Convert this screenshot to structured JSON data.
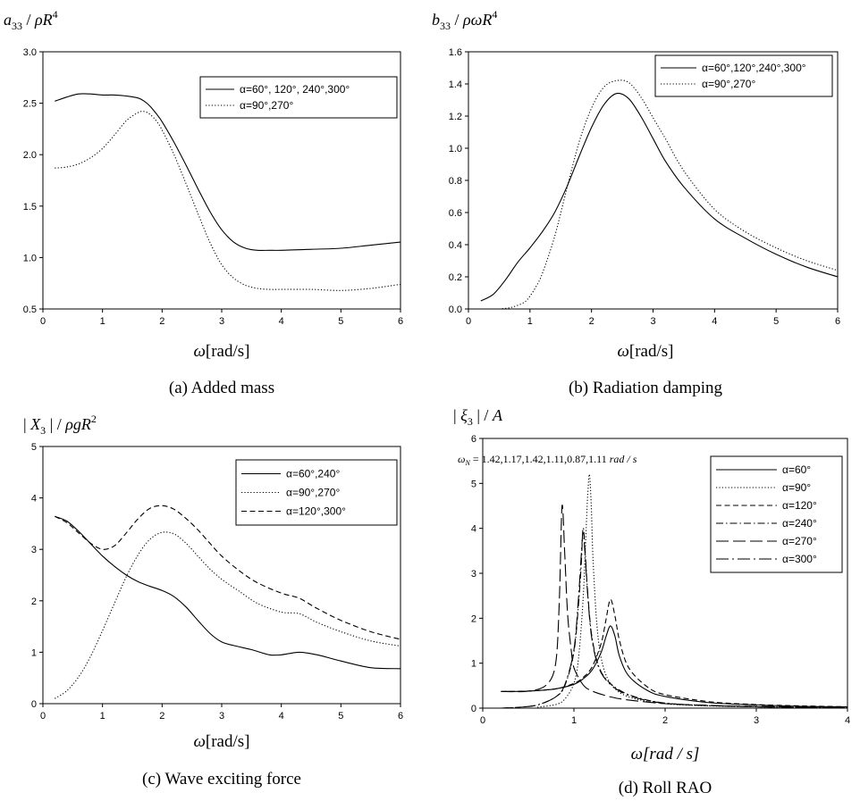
{
  "chart_data": [
    {
      "type": "line",
      "ylabel": "a33 / ρR4",
      "xlabel": "ω[rad/s]",
      "caption": "(a) Added mass",
      "xlim": [
        0,
        6
      ],
      "ylim": [
        0.5,
        3.0
      ],
      "xticks": [
        0,
        1,
        2,
        3,
        4,
        5,
        6
      ],
      "yticks": [
        0.5,
        1.0,
        1.5,
        2.0,
        2.5,
        3.0
      ],
      "ytick_decimals": 1,
      "legend": "top-right",
      "series": [
        {
          "name": "α=60°, 120°, 240°,300°",
          "style": "solid",
          "x": [
            0.2,
            0.4,
            0.6,
            0.8,
            1.0,
            1.2,
            1.4,
            1.6,
            1.7,
            1.8,
            1.9,
            2.0,
            2.2,
            2.4,
            2.6,
            2.8,
            3.0,
            3.2,
            3.4,
            3.6,
            3.8,
            4.0,
            4.5,
            5.0,
            5.5,
            6.0
          ],
          "y": [
            2.52,
            2.56,
            2.59,
            2.59,
            2.58,
            2.58,
            2.57,
            2.55,
            2.52,
            2.47,
            2.4,
            2.32,
            2.12,
            1.9,
            1.67,
            1.45,
            1.27,
            1.15,
            1.09,
            1.07,
            1.07,
            1.07,
            1.08,
            1.09,
            1.12,
            1.15
          ]
        },
        {
          "name": "α=90°,270°",
          "style": "dotted",
          "x": [
            0.2,
            0.4,
            0.6,
            0.8,
            1.0,
            1.2,
            1.4,
            1.6,
            1.7,
            1.8,
            1.9,
            2.0,
            2.2,
            2.4,
            2.6,
            2.8,
            3.0,
            3.2,
            3.4,
            3.6,
            3.8,
            4.0,
            4.5,
            5.0,
            5.5,
            6.0
          ],
          "y": [
            1.87,
            1.88,
            1.91,
            1.97,
            2.06,
            2.19,
            2.33,
            2.41,
            2.42,
            2.39,
            2.33,
            2.24,
            2.0,
            1.72,
            1.43,
            1.15,
            0.93,
            0.8,
            0.73,
            0.7,
            0.69,
            0.69,
            0.69,
            0.68,
            0.7,
            0.74
          ]
        }
      ]
    },
    {
      "type": "line",
      "ylabel": "b33 / ρωR4",
      "xlabel": "ω[rad/s]",
      "caption": "(b) Radiation damping",
      "xlim": [
        0,
        6
      ],
      "ylim": [
        0,
        1.6
      ],
      "xticks": [
        0,
        1,
        2,
        3,
        4,
        5,
        6
      ],
      "yticks": [
        0.0,
        0.2,
        0.4,
        0.6,
        0.8,
        1.0,
        1.2,
        1.4,
        1.6
      ],
      "ytick_decimals": 1,
      "legend": "top-right",
      "series": [
        {
          "name": "α=60°,120°,240°,300°",
          "style": "solid",
          "x": [
            0.2,
            0.4,
            0.6,
            0.8,
            1.0,
            1.2,
            1.4,
            1.6,
            1.8,
            2.0,
            2.2,
            2.4,
            2.6,
            2.8,
            3.0,
            3.2,
            3.5,
            4.0,
            4.5,
            5.0,
            5.5,
            6.0
          ],
          "y": [
            0.05,
            0.09,
            0.18,
            0.29,
            0.38,
            0.48,
            0.6,
            0.76,
            0.95,
            1.13,
            1.27,
            1.34,
            1.31,
            1.2,
            1.06,
            0.92,
            0.76,
            0.56,
            0.44,
            0.34,
            0.26,
            0.2
          ]
        },
        {
          "name": "α=90°,270°",
          "style": "dotted",
          "x": [
            0.5,
            0.7,
            0.9,
            1.0,
            1.1,
            1.2,
            1.4,
            1.6,
            1.8,
            2.0,
            2.2,
            2.4,
            2.6,
            2.8,
            3.0,
            3.2,
            3.5,
            4.0,
            4.5,
            5.0,
            5.5,
            6.0
          ],
          "y": [
            0.0,
            0.01,
            0.04,
            0.08,
            0.14,
            0.22,
            0.45,
            0.75,
            1.04,
            1.25,
            1.38,
            1.42,
            1.41,
            1.32,
            1.19,
            1.06,
            0.86,
            0.62,
            0.48,
            0.38,
            0.3,
            0.24
          ]
        }
      ]
    },
    {
      "type": "line",
      "ylabel": "|X3| / ρgR2",
      "xlabel": "ω[rad/s]",
      "caption": "(c) Wave exciting force",
      "xlim": [
        0,
        6
      ],
      "ylim": [
        0,
        5
      ],
      "xticks": [
        0,
        1,
        2,
        3,
        4,
        5,
        6
      ],
      "yticks": [
        0,
        1,
        2,
        3,
        4,
        5
      ],
      "ytick_decimals": 0,
      "legend": "top-right",
      "series": [
        {
          "name": "α=60°,240°",
          "style": "solid",
          "x": [
            0.2,
            0.4,
            0.6,
            0.8,
            1.0,
            1.2,
            1.4,
            1.6,
            1.8,
            2.0,
            2.2,
            2.4,
            2.6,
            2.8,
            3.0,
            3.2,
            3.5,
            3.8,
            4.0,
            4.3,
            4.6,
            5.0,
            5.5,
            6.0
          ],
          "y": [
            3.64,
            3.55,
            3.35,
            3.11,
            2.87,
            2.67,
            2.5,
            2.37,
            2.28,
            2.2,
            2.08,
            1.88,
            1.62,
            1.37,
            1.2,
            1.13,
            1.05,
            0.95,
            0.95,
            1.0,
            0.95,
            0.83,
            0.7,
            0.68
          ]
        },
        {
          "name": "α=90°,270°",
          "style": "dotted",
          "x": [
            0.2,
            0.4,
            0.6,
            0.8,
            1.0,
            1.2,
            1.4,
            1.6,
            1.8,
            2.0,
            2.2,
            2.4,
            2.6,
            2.8,
            3.0,
            3.3,
            3.6,
            4.0,
            4.3,
            4.6,
            5.0,
            5.5,
            6.0
          ],
          "y": [
            0.1,
            0.25,
            0.52,
            0.92,
            1.42,
            1.95,
            2.47,
            2.9,
            3.2,
            3.33,
            3.3,
            3.12,
            2.87,
            2.62,
            2.42,
            2.18,
            1.95,
            1.78,
            1.75,
            1.58,
            1.4,
            1.22,
            1.12
          ]
        },
        {
          "name": "α=120°,300°",
          "style": "dashed",
          "x": [
            0.2,
            0.4,
            0.6,
            0.8,
            1.0,
            1.2,
            1.4,
            1.6,
            1.8,
            2.0,
            2.2,
            2.4,
            2.6,
            2.8,
            3.0,
            3.3,
            3.6,
            4.0,
            4.3,
            4.6,
            5.0,
            5.5,
            6.0
          ],
          "y": [
            3.64,
            3.52,
            3.32,
            3.12,
            3.0,
            3.07,
            3.32,
            3.6,
            3.8,
            3.85,
            3.78,
            3.6,
            3.38,
            3.12,
            2.87,
            2.58,
            2.35,
            2.15,
            2.05,
            1.85,
            1.62,
            1.4,
            1.25
          ]
        }
      ]
    },
    {
      "type": "line",
      "ylabel": "|ξ3| / A",
      "xlabel": "ω[rad / s]",
      "caption": "(d) Roll RAO",
      "annotation": "ωN = 1.42,1.17,1.42,1.11,0.87,1.11 rad / s",
      "xlim": [
        0,
        4
      ],
      "ylim": [
        0,
        6
      ],
      "xticks": [
        0,
        1,
        2,
        3,
        4
      ],
      "yticks": [
        0,
        1,
        2,
        3,
        4,
        5,
        6
      ],
      "ytick_decimals": 0,
      "legend": "top-right",
      "series": [
        {
          "name": "α=60°",
          "style": "solid",
          "x": [
            0.2,
            0.5,
            0.8,
            1.0,
            1.1,
            1.2,
            1.3,
            1.35,
            1.4,
            1.45,
            1.5,
            1.6,
            1.8,
            2.0,
            2.5,
            3.0,
            3.5,
            4.0
          ],
          "y": [
            0.37,
            0.38,
            0.43,
            0.53,
            0.65,
            0.85,
            1.25,
            1.58,
            1.83,
            1.6,
            1.15,
            0.72,
            0.4,
            0.26,
            0.12,
            0.07,
            0.04,
            0.03
          ]
        },
        {
          "name": "α=90°",
          "style": "dotted",
          "x": [
            0.6,
            0.8,
            0.9,
            1.0,
            1.05,
            1.1,
            1.13,
            1.15,
            1.17,
            1.19,
            1.21,
            1.25,
            1.3,
            1.4,
            1.6,
            2.0,
            2.5,
            3.0,
            4.0
          ],
          "y": [
            0.02,
            0.08,
            0.2,
            0.55,
            1.1,
            2.4,
            3.8,
            4.7,
            5.2,
            4.5,
            3.3,
            1.9,
            1.1,
            0.55,
            0.25,
            0.1,
            0.05,
            0.03,
            0.01
          ]
        },
        {
          "name": "α=120°",
          "style": "dashed",
          "x": [
            0.2,
            0.5,
            0.8,
            1.0,
            1.1,
            1.2,
            1.3,
            1.35,
            1.4,
            1.45,
            1.5,
            1.6,
            1.8,
            2.0,
            2.5,
            3.0,
            3.5,
            4.0
          ],
          "y": [
            0.37,
            0.38,
            0.43,
            0.55,
            0.68,
            0.92,
            1.45,
            1.95,
            2.42,
            2.05,
            1.5,
            0.9,
            0.48,
            0.3,
            0.14,
            0.08,
            0.05,
            0.03
          ]
        },
        {
          "name": "α=240°",
          "style": "dashdot",
          "x": [
            0.2,
            0.4,
            0.6,
            0.8,
            0.9,
            1.0,
            1.05,
            1.08,
            1.1,
            1.12,
            1.15,
            1.2,
            1.3,
            1.5,
            1.8,
            2.2,
            3.0,
            4.0
          ],
          "y": [
            0.0,
            0.02,
            0.07,
            0.25,
            0.5,
            1.25,
            2.3,
            3.2,
            4.0,
            3.6,
            2.6,
            1.55,
            0.8,
            0.4,
            0.18,
            0.08,
            0.03,
            0.01
          ]
        },
        {
          "name": "α=270°",
          "style": "longdash",
          "x": [
            0.2,
            0.5,
            0.7,
            0.8,
            0.84,
            0.87,
            0.9,
            0.93,
            0.97,
            1.0,
            1.1,
            1.2,
            1.4,
            1.6,
            2.0,
            2.5,
            3.0,
            4.0
          ],
          "y": [
            0.37,
            0.38,
            0.52,
            1.0,
            2.4,
            4.5,
            3.4,
            2.1,
            1.3,
            0.9,
            0.52,
            0.38,
            0.25,
            0.18,
            0.1,
            0.06,
            0.04,
            0.02
          ]
        },
        {
          "name": "α=300°",
          "style": "longdashdot",
          "x": [
            0.2,
            0.4,
            0.6,
            0.8,
            0.9,
            1.0,
            1.05,
            1.08,
            1.1,
            1.12,
            1.15,
            1.2,
            1.3,
            1.5,
            1.8,
            2.2,
            3.0,
            4.0
          ],
          "y": [
            0.0,
            0.02,
            0.07,
            0.25,
            0.52,
            1.3,
            2.45,
            3.4,
            3.9,
            3.5,
            2.55,
            1.5,
            0.78,
            0.38,
            0.17,
            0.08,
            0.03,
            0.01
          ]
        }
      ]
    }
  ]
}
